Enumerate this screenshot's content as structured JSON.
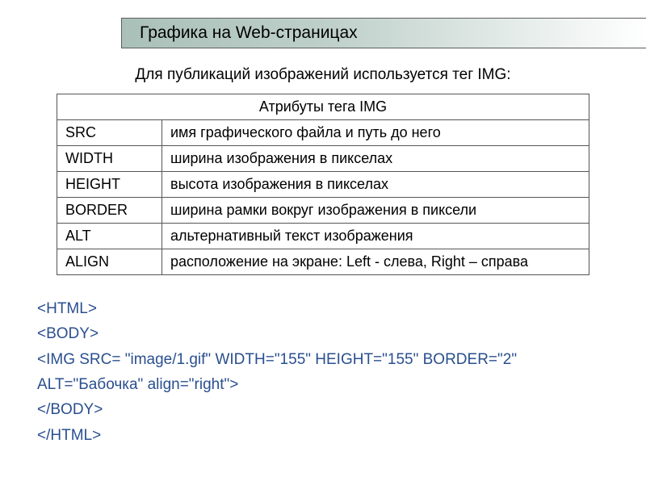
{
  "title": "Графика на Web-страницах",
  "intro": "Для публикаций изображений используется тег IMG:",
  "table": {
    "header": "Атрибуты тега IMG",
    "columns": [
      "attr",
      "desc"
    ],
    "rows": [
      {
        "attr": "SRC",
        "desc": "имя графического файла и путь до него"
      },
      {
        "attr": "WIDTH",
        "desc": "ширина изображения в пикселах"
      },
      {
        "attr": "HEIGHT",
        "desc": "высота изображения в пикселах"
      },
      {
        "attr": "BORDER",
        "desc": "ширина рамки вокруг изображения в пиксели"
      },
      {
        "attr": "ALT",
        "desc": "альтернативный текст изображения"
      },
      {
        "attr": "ALIGN",
        "desc": "расположение на экране: Left - слева, Right – справа"
      }
    ]
  },
  "code": {
    "line1": "<HTML>",
    "line2": "<BODY>",
    "line3": "<IMG SRC= \"image/1.gif\" WIDTH=\"155\" HEIGHT=\"155\" BORDER=\"2\"",
    "line4": "ALT=\"Бабочка\" align=\"right\">",
    "line5": "</BODY>",
    "line6": "</HTML>"
  },
  "colors": {
    "title_grad_start": "#a9c0b8",
    "title_grad_end": "#ffffff",
    "border": "#555555",
    "code_color": "#2a4f8f",
    "background": "#ffffff",
    "text": "#000000"
  }
}
